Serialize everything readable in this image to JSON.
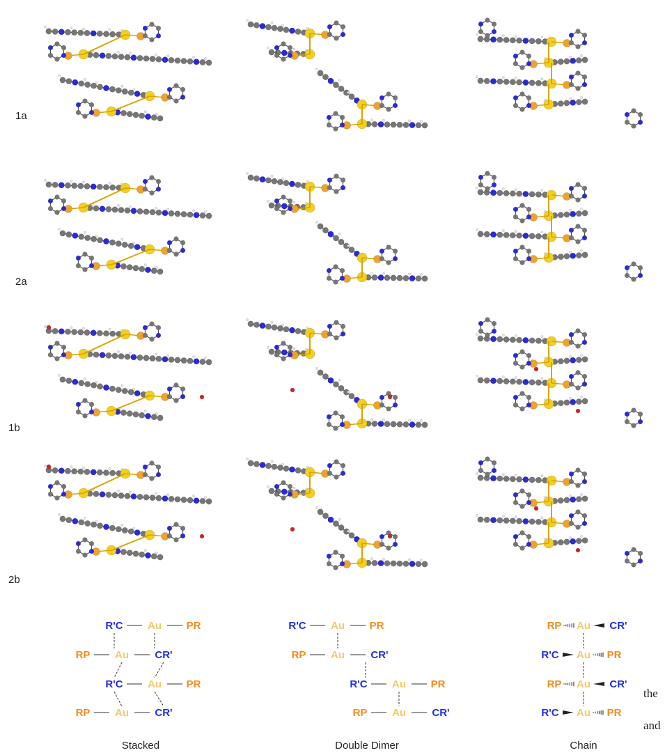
{
  "rows": [
    {
      "label": "1a"
    },
    {
      "label": "2a"
    },
    {
      "label": "1b"
    },
    {
      "label": "2b"
    }
  ],
  "schemes": [
    {
      "caption": "Stacked"
    },
    {
      "caption": "Double Dimer"
    },
    {
      "caption": "Chain"
    }
  ],
  "symbols": {
    "gold": "Au",
    "phosphine": "PR",
    "phosphine_left": "RP",
    "acetylide_left": "R'C",
    "acetylide_right": "CR'"
  },
  "edge_text": {
    "line1": "the",
    "line2": "and"
  },
  "colors": {
    "gold_atom": "#f3cf1e",
    "phosphorus_atom": "#f0a22a",
    "carbon_atom": "#767676",
    "nitrogen_atom": "#2a2ad6",
    "oxygen_atom": "#d42222",
    "hydrogen_atom": "#e8e8e8",
    "scheme_au": "#f7c86b",
    "scheme_p": "#f28c1e",
    "scheme_c": "#1f2ee8",
    "bond_au": "#d9a400"
  }
}
